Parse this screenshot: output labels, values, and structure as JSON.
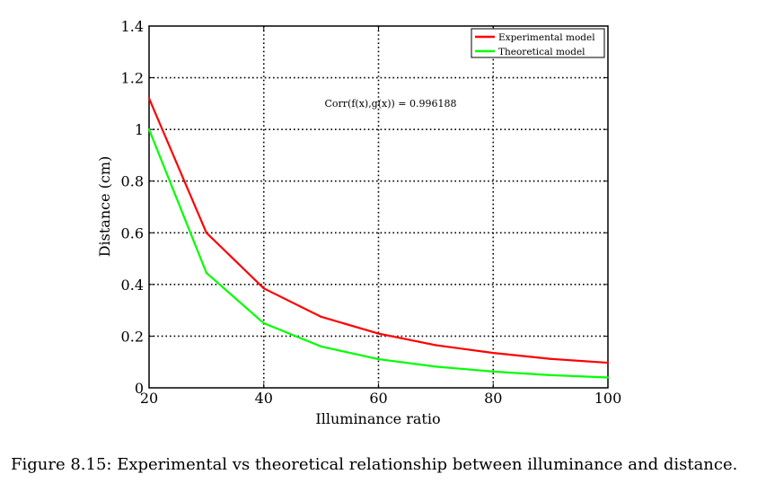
{
  "chart_data": {
    "type": "line",
    "xlabel": "Illuminance ratio",
    "ylabel": "Distance (cm)",
    "xlim": [
      20,
      100
    ],
    "ylim": [
      0,
      1.4
    ],
    "xticks": [
      20,
      40,
      60,
      80,
      100
    ],
    "yticks": [
      0,
      0.2,
      0.4,
      0.6,
      0.8,
      1,
      1.2,
      1.4
    ],
    "grid": true,
    "legend_position": "top-right",
    "annotation": "Corr(f(x),g(x)) = 0.996188",
    "x": [
      20,
      30,
      40,
      50,
      60,
      70,
      80,
      90,
      100
    ],
    "series": [
      {
        "name": "Experimental model",
        "color": "#ff0000",
        "values": [
          1.12,
          0.6,
          0.385,
          0.275,
          0.21,
          0.165,
          0.135,
          0.112,
          0.097
        ]
      },
      {
        "name": "Theoretical model",
        "color": "#00ff00",
        "values": [
          1.0,
          0.445,
          0.25,
          0.16,
          0.111,
          0.082,
          0.063,
          0.049,
          0.04
        ]
      }
    ]
  },
  "caption": "Figure 8.15: Experimental vs theoretical relationship between illuminance and distance."
}
